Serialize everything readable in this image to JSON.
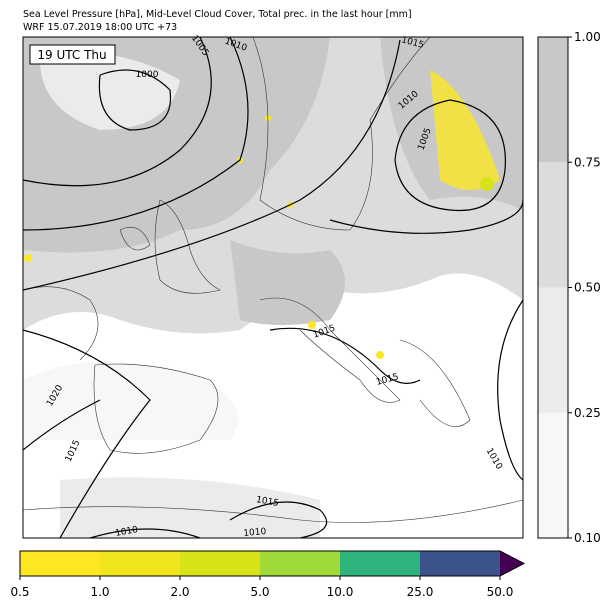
{
  "header": {
    "title": "Sea Level Pressure [hPa], Mid-Level Cloud Cover, Total prec. in the last hour [mm]",
    "subtitle": "WRF 15.07.2019 18:00 UTC +73"
  },
  "map": {
    "time_label": "19 UTC Thu",
    "contour_labels": [
      "1005",
      "1010",
      "1015",
      "1000",
      "1010",
      "1005",
      "1020",
      "1015",
      "1015",
      "1015",
      "1015",
      "1010",
      "1010",
      "1010"
    ]
  },
  "cloud_colorbar": {
    "ticks": [
      "0.10",
      "0.25",
      "0.50",
      "0.75",
      "1.00"
    ],
    "colors": [
      "#f7f7f7",
      "#ebebeb",
      "#dcdcdc",
      "#c8c8c8"
    ]
  },
  "precip_colorbar": {
    "ticks": [
      "0.5",
      "1.0",
      "2.0",
      "5.0",
      "10.0",
      "25.0",
      "50.0"
    ],
    "colors": [
      "#fde725",
      "#f1e51d",
      "#d8e219",
      "#a0da39",
      "#2eb37c",
      "#3b528b"
    ],
    "extend_color": "#440154"
  }
}
